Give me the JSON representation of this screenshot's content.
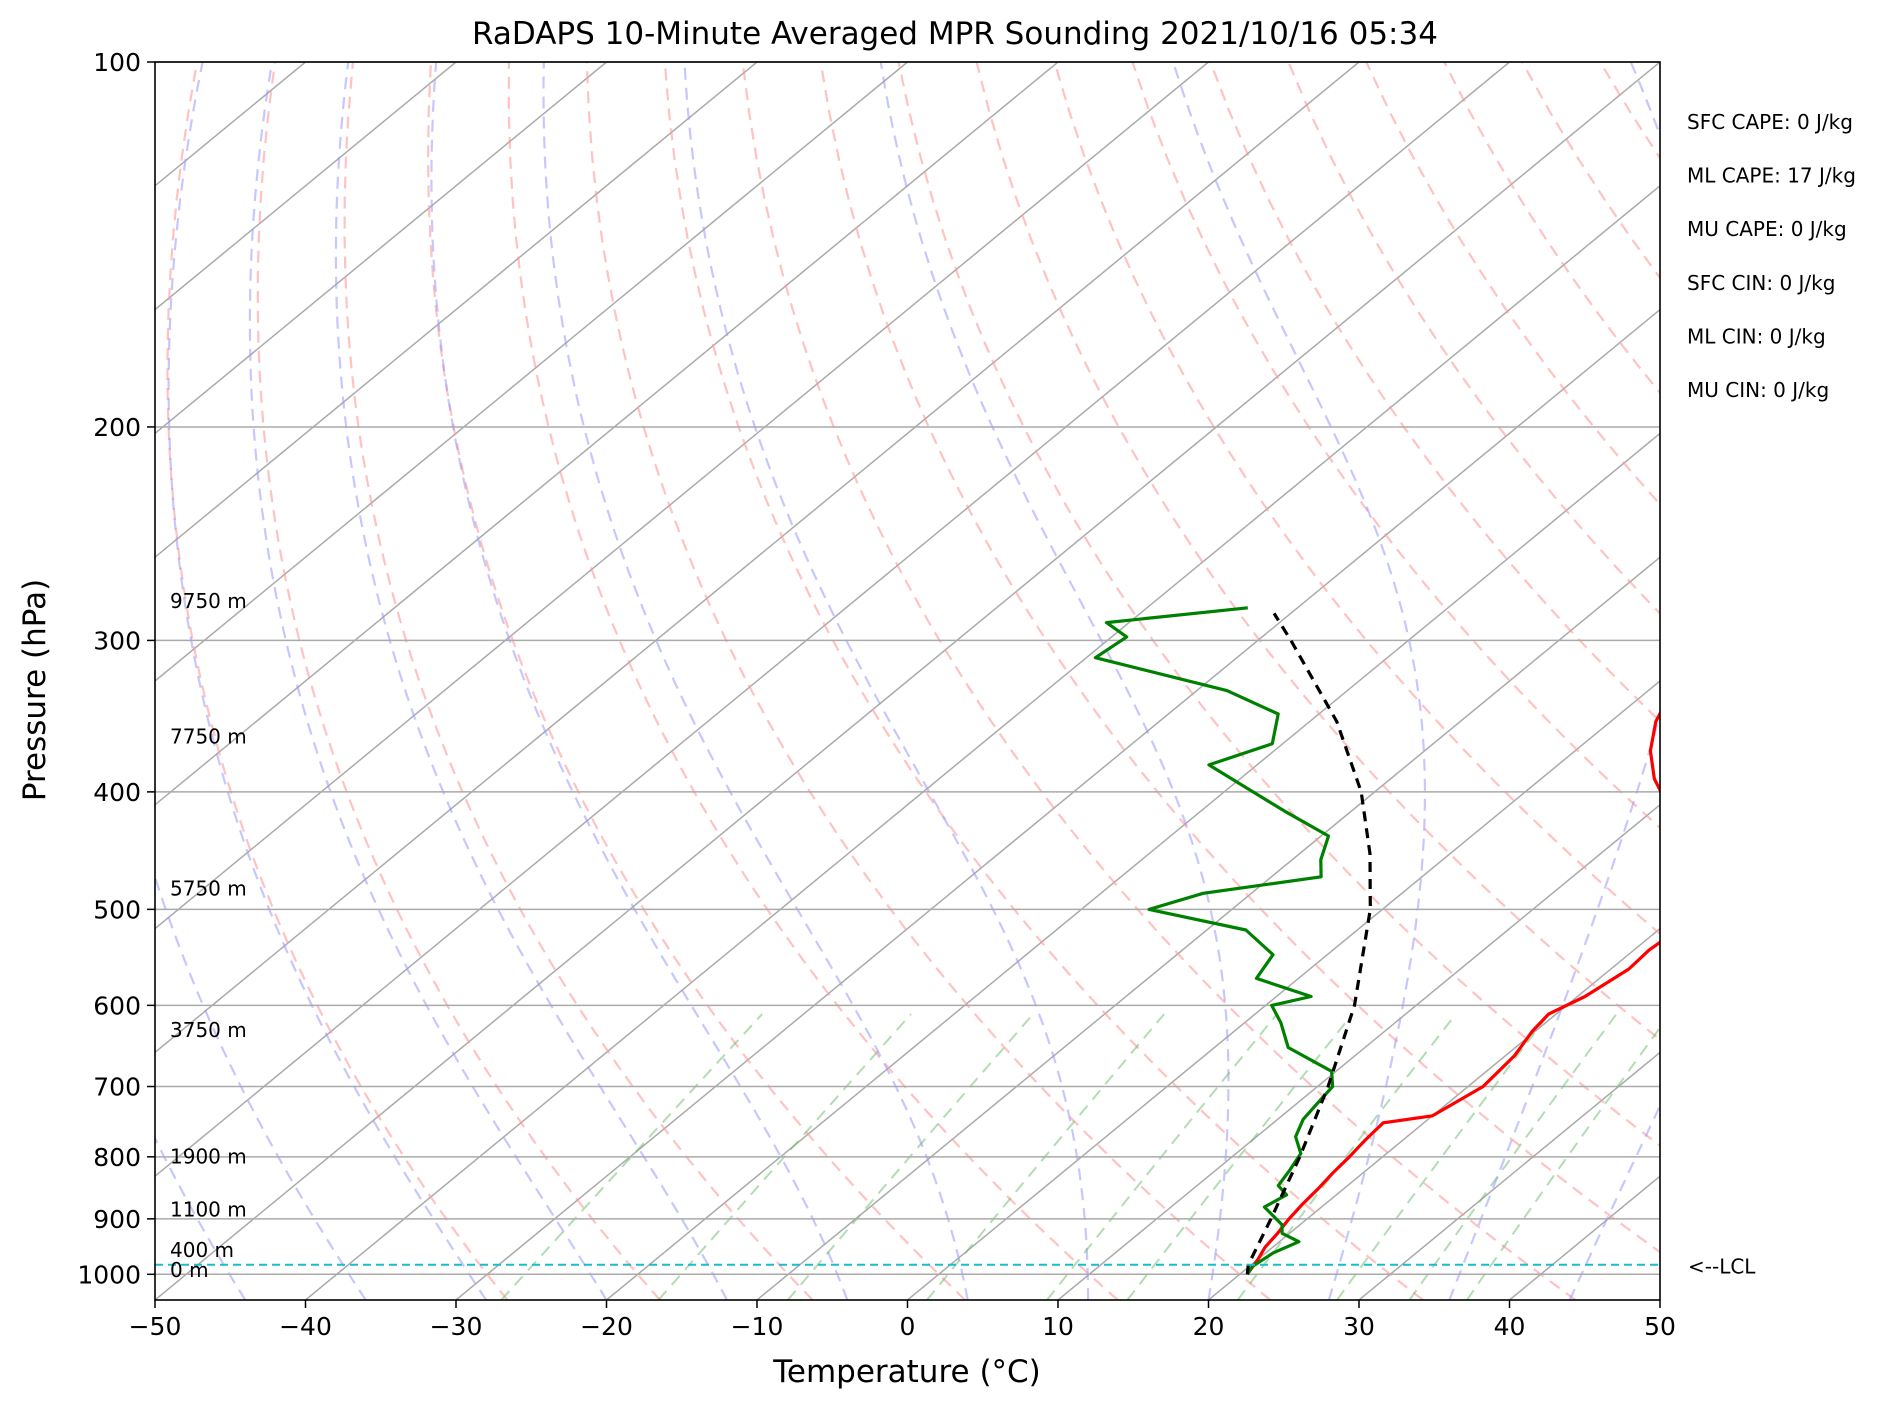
{
  "chart_data": {
    "type": "skew-t",
    "title": "RaDAPS 10-Minute Averaged MPR Sounding 2021/10/16 05:34",
    "xlabel": "Temperature (°C)",
    "ylabel": "Pressure (hPa)",
    "xlim": [
      -50,
      50
    ],
    "ylim": [
      1050,
      100
    ],
    "y_scale": "log",
    "grid": true,
    "x_ticks": [
      "−50",
      "−40",
      "−30",
      "−20",
      "−10",
      "0",
      "10",
      "20",
      "30",
      "40",
      "50"
    ],
    "x_tick_values": [
      -50,
      -40,
      -30,
      -20,
      -10,
      0,
      10,
      20,
      30,
      40,
      50
    ],
    "y_ticks": [
      "100",
      "200",
      "300",
      "400",
      "500",
      "600",
      "700",
      "800",
      "900",
      "1000"
    ],
    "y_tick_values": [
      100,
      200,
      300,
      400,
      500,
      600,
      700,
      800,
      900,
      1000
    ],
    "height_labels": [
      {
        "text": "9750 m",
        "p": 282
      },
      {
        "text": "7750 m",
        "p": 365
      },
      {
        "text": "5750 m",
        "p": 487
      },
      {
        "text": "3750 m",
        "p": 637
      },
      {
        "text": "1900 m",
        "p": 810
      },
      {
        "text": "1100 m",
        "p": 896
      },
      {
        "text": "400 m",
        "p": 968
      },
      {
        "text": "0 m",
        "p": 1005
      }
    ],
    "indices": [
      "SFC CAPE: 0 J/kg",
      "ML CAPE: 17 J/kg",
      "MU CAPE: 0 J/kg",
      "SFC CIN: 0 J/kg",
      "ML CIN: 0 J/kg",
      "MU CIN: 0 J/kg"
    ],
    "lcl": {
      "label": "<--LCL",
      "p": 982
    },
    "series": [
      {
        "color": "#ff0000",
        "points": [
          [
            1000,
            20.5
          ],
          [
            972,
            20.0
          ],
          [
            950,
            19.5
          ],
          [
            925,
            19.2
          ],
          [
            900,
            18.8
          ],
          [
            875,
            18.5
          ],
          [
            850,
            18.3
          ],
          [
            825,
            18.0
          ],
          [
            800,
            17.8
          ],
          [
            775,
            17.5
          ],
          [
            750,
            17.3
          ],
          [
            740,
            20.0
          ],
          [
            700,
            21.0
          ],
          [
            680,
            20.8
          ],
          [
            660,
            20.6
          ],
          [
            630,
            19.8
          ],
          [
            610,
            19.5
          ],
          [
            590,
            20.5
          ],
          [
            560,
            21.2
          ],
          [
            540,
            21.0
          ],
          [
            520,
            21.3
          ],
          [
            500,
            20.2
          ],
          [
            470,
            16.2
          ],
          [
            450,
            15.3
          ],
          [
            430,
            12.5
          ],
          [
            410,
            10.5
          ],
          [
            390,
            7.5
          ],
          [
            370,
            5.0
          ],
          [
            350,
            3.0
          ],
          [
            340,
            2.3
          ],
          [
            320,
            0.5
          ],
          [
            310,
            -0.8
          ],
          [
            300,
            -1.5
          ],
          [
            290,
            -2.0
          ],
          [
            280,
            -2.5
          ]
        ]
      },
      {
        "color": "#008000",
        "points": [
          [
            1000,
            20.5
          ],
          [
            985,
            20.2
          ],
          [
            960,
            20.5
          ],
          [
            940,
            21.3
          ],
          [
            925,
            19.5
          ],
          [
            910,
            18.8
          ],
          [
            880,
            16.2
          ],
          [
            860,
            16.7
          ],
          [
            845,
            15.4
          ],
          [
            820,
            14.9
          ],
          [
            795,
            14.3
          ],
          [
            770,
            12.6
          ],
          [
            745,
            11.7
          ],
          [
            720,
            11.3
          ],
          [
            700,
            11.0
          ],
          [
            680,
            9.7
          ],
          [
            650,
            4.9
          ],
          [
            620,
            2.4
          ],
          [
            600,
            0.4
          ],
          [
            590,
            2.3
          ],
          [
            570,
            -2.8
          ],
          [
            545,
            -3.6
          ],
          [
            520,
            -7.4
          ],
          [
            500,
            -15.5
          ],
          [
            485,
            -13.2
          ],
          [
            470,
            -6.7
          ],
          [
            455,
            -8.1
          ],
          [
            435,
            -9.5
          ],
          [
            415,
            -14.4
          ],
          [
            380,
            -23.2
          ],
          [
            365,
            -20.7
          ],
          [
            345,
            -22.7
          ],
          [
            330,
            -28.0
          ],
          [
            310,
            -39.4
          ],
          [
            298,
            -39.0
          ],
          [
            290,
            -41.5
          ],
          [
            282,
            -33.3
          ]
        ]
      },
      {
        "color": "#000000",
        "dashed": true,
        "points": [
          [
            1000,
            20.5
          ],
          [
            982,
            19.8
          ],
          [
            900,
            17.6
          ],
          [
            800,
            14.5
          ],
          [
            700,
            10.7
          ],
          [
            600,
            5.9
          ],
          [
            500,
            -0.8
          ],
          [
            450,
            -5.3
          ],
          [
            400,
            -10.9
          ],
          [
            350,
            -18.2
          ],
          [
            300,
            -27.8
          ],
          [
            285,
            -31.1
          ]
        ]
      }
    ]
  }
}
